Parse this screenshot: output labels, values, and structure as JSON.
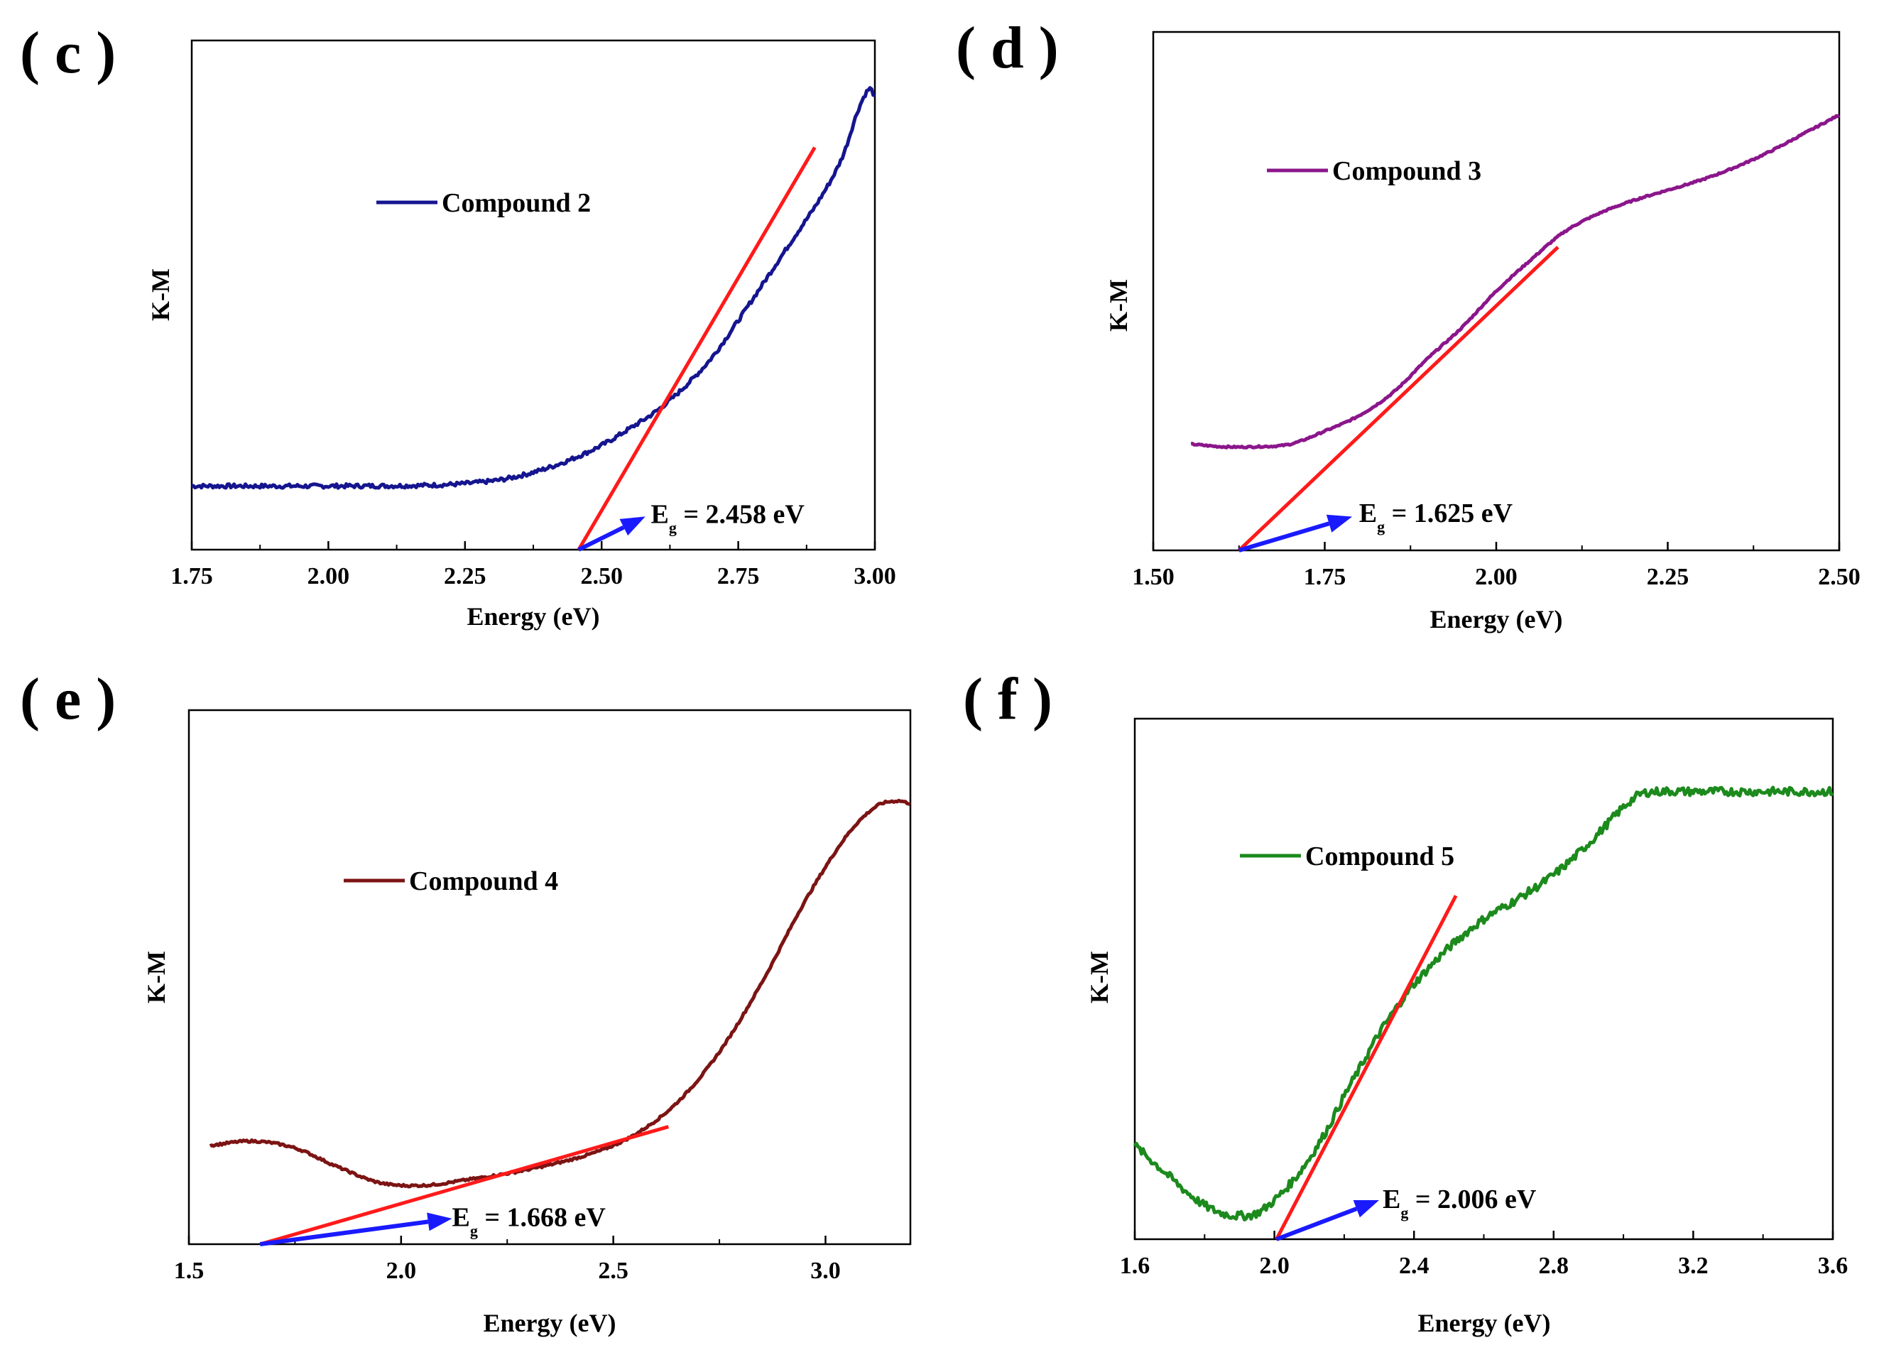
{
  "chart_data": [
    {
      "panel": "( c )",
      "type": "line",
      "xlabel": "Energy (eV)",
      "ylabel": "K-M",
      "xlim": [
        1.75,
        3.0
      ],
      "ylim": [
        0,
        1
      ],
      "xticks": [
        1.75,
        2.0,
        2.25,
        2.5,
        2.75,
        3.0
      ],
      "xtick_labels": [
        "1.75",
        "2.00",
        "2.25",
        "2.50",
        "2.75",
        "3.00"
      ],
      "legend": {
        "label": "Compound 2",
        "position": "upper-left",
        "color": "#15158f"
      },
      "series": [
        {
          "name": "Compound 2",
          "color": "#15158f",
          "noise": 0.004,
          "x": [
            1.75,
            2.0,
            2.2,
            2.3,
            2.35,
            2.4,
            2.45,
            2.5,
            2.55,
            2.6,
            2.65,
            2.7,
            2.75,
            2.8,
            2.85,
            2.9,
            2.94,
            2.97,
            2.99,
            3.0
          ],
          "y": [
            0.125,
            0.125,
            0.127,
            0.135,
            0.145,
            0.16,
            0.18,
            0.205,
            0.237,
            0.272,
            0.318,
            0.375,
            0.45,
            0.53,
            0.61,
            0.69,
            0.77,
            0.865,
            0.905,
            0.89
          ]
        }
      ],
      "tangent": {
        "color": "#ff1a1a",
        "x": [
          2.458,
          2.89
        ],
        "y": [
          0.0,
          0.79
        ]
      },
      "annotation": {
        "main": "E",
        "sub": "g",
        "text": " = 2.458 eV",
        "arrow_color": "#1a1aff",
        "arrow_from": [
          2.458,
          0.0
        ],
        "arrow_to": [
          2.58,
          0.065
        ],
        "text_at": [
          2.59,
          0.052
        ]
      }
    },
    {
      "panel": "( d )",
      "type": "line",
      "xlabel": "Energy (eV)",
      "ylabel": "K-M",
      "xlim": [
        1.5,
        2.5
      ],
      "ylim": [
        0,
        1
      ],
      "xticks": [
        1.5,
        1.75,
        2.0,
        2.25,
        2.5
      ],
      "xtick_labels": [
        "1.50",
        "1.75",
        "2.00",
        "2.25",
        "2.50"
      ],
      "legend": {
        "label": "Compound 3",
        "position": "upper-left",
        "color": "#8b168b"
      },
      "series": [
        {
          "name": "Compound 3",
          "color": "#8b168b",
          "noise": 0.0015,
          "x": [
            1.555,
            1.6,
            1.65,
            1.7,
            1.75,
            1.8,
            1.85,
            1.9,
            1.95,
            2.0,
            2.05,
            2.1,
            2.15,
            2.2,
            2.25,
            2.3,
            2.35,
            2.4,
            2.45,
            2.5
          ],
          "y": [
            0.205,
            0.2,
            0.2,
            0.205,
            0.23,
            0.26,
            0.305,
            0.37,
            0.43,
            0.5,
            0.56,
            0.615,
            0.65,
            0.675,
            0.695,
            0.715,
            0.74,
            0.77,
            0.805,
            0.84
          ]
        }
      ],
      "tangent": {
        "color": "#ff1a1a",
        "x": [
          1.625,
          2.09
        ],
        "y": [
          0.0,
          0.585
        ]
      },
      "annotation": {
        "main": "E",
        "sub": "g",
        "text": " = 1.625 eV",
        "arrow_color": "#1a1aff",
        "arrow_from": [
          1.625,
          0.0
        ],
        "arrow_to": [
          1.79,
          0.065
        ],
        "text_at": [
          1.8,
          0.055
        ]
      }
    },
    {
      "panel": "( e )",
      "type": "line",
      "xlabel": "Energy (eV)",
      "ylabel": "K-M",
      "xlim": [
        1.5,
        3.2
      ],
      "ylim": [
        0,
        1
      ],
      "xticks": [
        1.5,
        2.0,
        2.5,
        3.0
      ],
      "xtick_labels": [
        "1.5",
        "2.0",
        "2.5",
        "3.0"
      ],
      "legend": {
        "label": "Compound 4",
        "position": "upper-left",
        "color": "#7c1414"
      },
      "series": [
        {
          "name": "Compound 4",
          "color": "#7c1414",
          "noise": 0.002,
          "x": [
            1.55,
            1.65,
            1.75,
            1.85,
            1.95,
            2.05,
            2.15,
            2.3,
            2.45,
            2.55,
            2.65,
            2.75,
            2.85,
            2.95,
            3.05,
            3.12,
            3.17,
            3.2
          ],
          "y": [
            0.185,
            0.193,
            0.18,
            0.145,
            0.115,
            0.11,
            0.12,
            0.14,
            0.17,
            0.205,
            0.265,
            0.36,
            0.49,
            0.64,
            0.765,
            0.82,
            0.83,
            0.825
          ]
        }
      ],
      "tangent": {
        "color": "#ff1a1a",
        "x": [
          1.668,
          2.63
        ],
        "y": [
          0.0,
          0.22
        ]
      },
      "annotation": {
        "main": "E",
        "sub": "g",
        "text": " = 1.668 eV",
        "arrow_color": "#1a1aff",
        "arrow_from": [
          1.668,
          0.0
        ],
        "arrow_to": [
          2.12,
          0.048
        ],
        "text_at": [
          2.12,
          0.034
        ]
      }
    },
    {
      "panel": "( f )",
      "type": "line",
      "xlabel": "Energy (eV)",
      "ylabel": "K-M",
      "xlim": [
        1.6,
        3.6
      ],
      "ylim": [
        0,
        1
      ],
      "xticks": [
        1.6,
        2.0,
        2.4,
        2.8,
        3.2,
        3.6
      ],
      "xtick_labels": [
        "1.6",
        "2.0",
        "2.4",
        "2.8",
        "3.2",
        "3.6"
      ],
      "legend": {
        "label": "Compound 5",
        "position": "upper-left",
        "color": "#1c8a1c"
      },
      "series": [
        {
          "name": "Compound 5",
          "color": "#1c8a1c",
          "noise": 0.008,
          "x": [
            1.6,
            1.65,
            1.7,
            1.75,
            1.8,
            1.85,
            1.9,
            1.95,
            2.0,
            2.05,
            2.1,
            2.15,
            2.2,
            2.25,
            2.3,
            2.35,
            2.4,
            2.5,
            2.6,
            2.7,
            2.8,
            2.9,
            3.0,
            3.05,
            3.1,
            3.2,
            3.4,
            3.6
          ],
          "y": [
            0.18,
            0.15,
            0.12,
            0.09,
            0.065,
            0.05,
            0.045,
            0.05,
            0.075,
            0.11,
            0.155,
            0.21,
            0.275,
            0.335,
            0.395,
            0.445,
            0.49,
            0.56,
            0.615,
            0.655,
            0.7,
            0.76,
            0.83,
            0.855,
            0.86,
            0.86,
            0.86,
            0.86
          ]
        }
      ],
      "tangent": {
        "color": "#ff1a1a",
        "x": [
          2.006,
          2.52
        ],
        "y": [
          0.0,
          0.66
        ]
      },
      "annotation": {
        "main": "E",
        "sub": "g",
        "text": " = 2.006 eV",
        "arrow_color": "#1a1aff",
        "arrow_from": [
          2.006,
          0.0
        ],
        "arrow_to": [
          2.3,
          0.075
        ],
        "text_at": [
          2.31,
          0.06
        ]
      }
    }
  ]
}
